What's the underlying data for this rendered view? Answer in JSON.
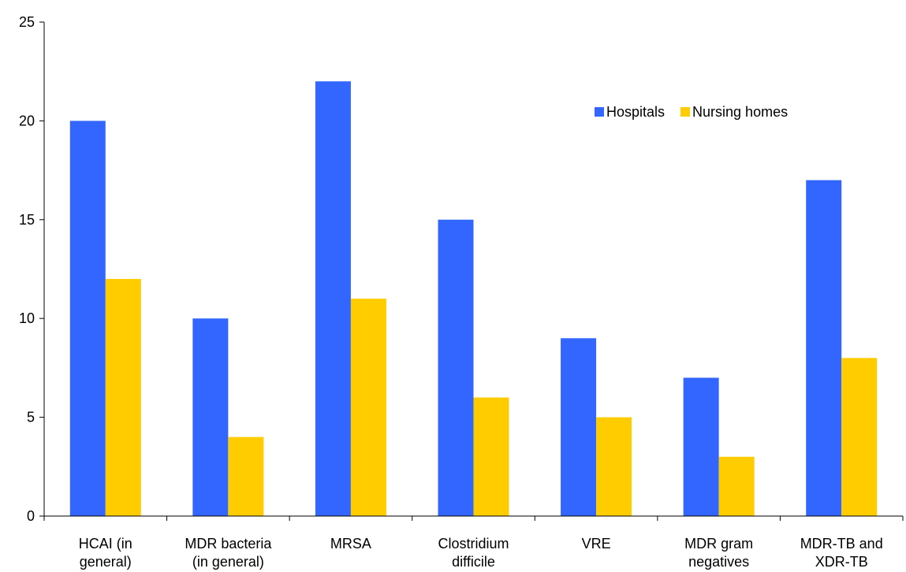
{
  "chart_data": {
    "type": "bar",
    "categories": [
      [
        "HCAI (in",
        "general)"
      ],
      [
        "MDR bacteria",
        "(in general)"
      ],
      [
        "MRSA"
      ],
      [
        "Clostridium",
        "difficile"
      ],
      [
        "VRE"
      ],
      [
        "MDR gram",
        "negatives"
      ],
      [
        "MDR-TB and",
        "XDR-TB"
      ]
    ],
    "series": [
      {
        "name": "Hospitals",
        "color": "#3366ff",
        "values": [
          20,
          10,
          22,
          15,
          9,
          7,
          17
        ]
      },
      {
        "name": "Nursing homes",
        "color": "#ffcc00",
        "values": [
          12,
          4,
          11,
          6,
          5,
          3,
          8
        ]
      }
    ],
    "title": "",
    "xlabel": "",
    "ylabel": "",
    "ylim": [
      0,
      25
    ],
    "yticks": [
      "0",
      "5",
      "10",
      "15",
      "20",
      "25"
    ],
    "grid": false,
    "legend_position": "top-right"
  }
}
